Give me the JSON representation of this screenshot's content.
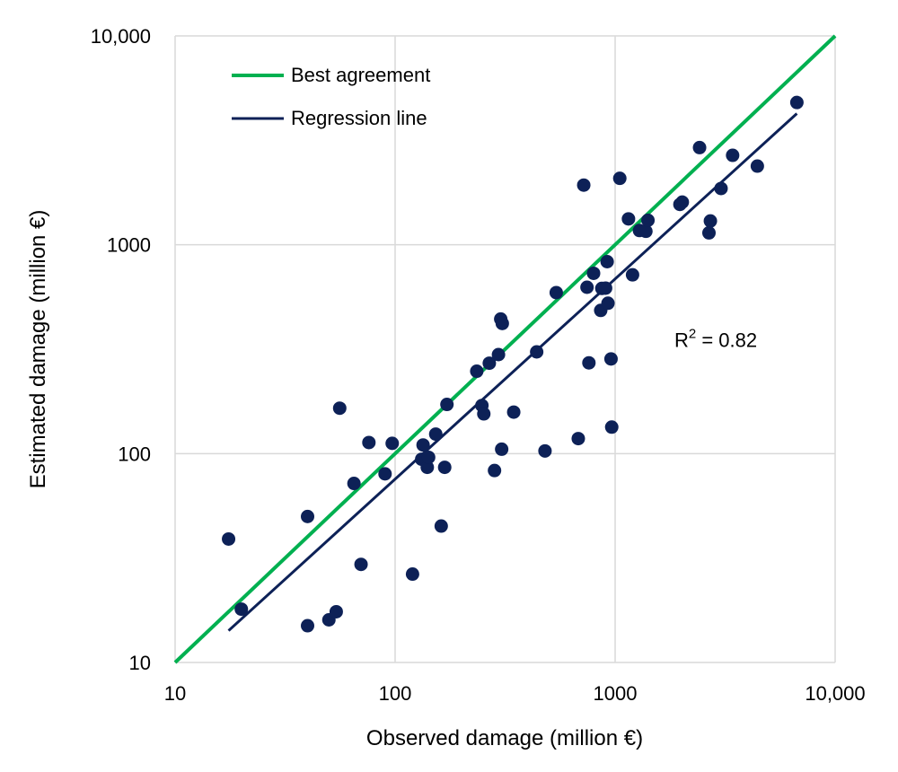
{
  "chart_data": {
    "type": "scatter",
    "xscale": "log",
    "yscale": "log",
    "xlim": [
      10,
      10000
    ],
    "ylim": [
      10,
      10000
    ],
    "xticks": [
      10,
      100,
      1000,
      10000
    ],
    "yticks": [
      10,
      100,
      1000,
      10000
    ],
    "xtick_labels": [
      "10",
      "100",
      "1000",
      "10,000"
    ],
    "ytick_labels": [
      "10",
      "100",
      "1000",
      "10,000"
    ],
    "xlabel": "Observed damage (million €)",
    "ylabel": "Estimated damage (million €)",
    "grid": true,
    "legend": {
      "position": "top-left",
      "entries": [
        {
          "label": "Best agreement",
          "color": "#00B050"
        },
        {
          "label": "Regression line",
          "color": "#0D2157"
        }
      ]
    },
    "annotation": {
      "base": "R",
      "superscript": "2",
      "rest": " = 0.82",
      "x": 1000,
      "y": 350
    },
    "best_agreement": {
      "x": [
        10,
        10000
      ],
      "y": [
        10,
        10000
      ],
      "color": "#00B050"
    },
    "regression_line": {
      "x": [
        17.5,
        6700
      ],
      "y": [
        14.2,
        4250
      ],
      "color": "#0D2157"
    },
    "marker_color": "#0D2157",
    "points": [
      {
        "x": 17.5,
        "y": 39
      },
      {
        "x": 20,
        "y": 18
      },
      {
        "x": 40,
        "y": 50
      },
      {
        "x": 40,
        "y": 15
      },
      {
        "x": 50,
        "y": 16
      },
      {
        "x": 54,
        "y": 17.5
      },
      {
        "x": 56,
        "y": 165
      },
      {
        "x": 65,
        "y": 72
      },
      {
        "x": 70,
        "y": 29.5
      },
      {
        "x": 76,
        "y": 113
      },
      {
        "x": 90,
        "y": 80
      },
      {
        "x": 97,
        "y": 112
      },
      {
        "x": 120,
        "y": 26.5
      },
      {
        "x": 132,
        "y": 94
      },
      {
        "x": 134,
        "y": 110
      },
      {
        "x": 140,
        "y": 86
      },
      {
        "x": 142,
        "y": 96
      },
      {
        "x": 153,
        "y": 124
      },
      {
        "x": 162,
        "y": 45
      },
      {
        "x": 168,
        "y": 86
      },
      {
        "x": 172,
        "y": 172
      },
      {
        "x": 235,
        "y": 248
      },
      {
        "x": 248,
        "y": 170
      },
      {
        "x": 253,
        "y": 155
      },
      {
        "x": 268,
        "y": 271
      },
      {
        "x": 283,
        "y": 83
      },
      {
        "x": 295,
        "y": 298
      },
      {
        "x": 302,
        "y": 441
      },
      {
        "x": 305,
        "y": 105
      },
      {
        "x": 307,
        "y": 420
      },
      {
        "x": 346,
        "y": 158
      },
      {
        "x": 440,
        "y": 307
      },
      {
        "x": 480,
        "y": 103
      },
      {
        "x": 540,
        "y": 590
      },
      {
        "x": 680,
        "y": 118
      },
      {
        "x": 720,
        "y": 1930
      },
      {
        "x": 745,
        "y": 626
      },
      {
        "x": 760,
        "y": 272
      },
      {
        "x": 798,
        "y": 730
      },
      {
        "x": 860,
        "y": 485
      },
      {
        "x": 870,
        "y": 618
      },
      {
        "x": 905,
        "y": 620
      },
      {
        "x": 920,
        "y": 830
      },
      {
        "x": 928,
        "y": 525
      },
      {
        "x": 958,
        "y": 284
      },
      {
        "x": 965,
        "y": 134
      },
      {
        "x": 1050,
        "y": 2080
      },
      {
        "x": 1150,
        "y": 1330
      },
      {
        "x": 1200,
        "y": 718
      },
      {
        "x": 1290,
        "y": 1170
      },
      {
        "x": 1380,
        "y": 1160
      },
      {
        "x": 1410,
        "y": 1310
      },
      {
        "x": 1970,
        "y": 1560
      },
      {
        "x": 2020,
        "y": 1600
      },
      {
        "x": 2420,
        "y": 2920
      },
      {
        "x": 2670,
        "y": 1140
      },
      {
        "x": 2710,
        "y": 1300
      },
      {
        "x": 3030,
        "y": 1860
      },
      {
        "x": 3420,
        "y": 2680
      },
      {
        "x": 4430,
        "y": 2380
      },
      {
        "x": 6700,
        "y": 4800
      }
    ]
  }
}
